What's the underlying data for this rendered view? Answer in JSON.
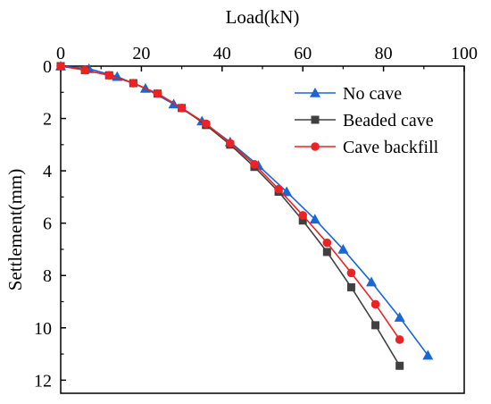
{
  "chart_data": {
    "type": "line",
    "title": "",
    "xlabel": "Load(kN)",
    "ylabel": "Settlement(mm)",
    "x_axis_position": "top",
    "y_axis_inverted": true,
    "xlim": [
      0,
      100
    ],
    "ylim": [
      0,
      12.5
    ],
    "xticks": [
      "0",
      "20",
      "40",
      "60",
      "80",
      "100"
    ],
    "yticks": [
      "0",
      "2",
      "4",
      "6",
      "8",
      "10",
      "12"
    ],
    "grid": false,
    "legend_position": "top-right",
    "series": [
      {
        "name": "No cave",
        "color": "#1a66d6",
        "marker": "triangle",
        "x": [
          0,
          7,
          14,
          21,
          28,
          35,
          42,
          49,
          56,
          63,
          70,
          77,
          84,
          91
        ],
        "y": [
          0,
          0.1,
          0.4,
          0.85,
          1.45,
          2.1,
          2.9,
          3.8,
          4.8,
          5.85,
          7.0,
          8.25,
          9.6,
          11.05
        ]
      },
      {
        "name": "Beaded cave",
        "color": "#404040",
        "marker": "square",
        "x": [
          0,
          6,
          12,
          18,
          24,
          30,
          36,
          42,
          48,
          54,
          60,
          66,
          72,
          78,
          84
        ],
        "y": [
          0,
          0.15,
          0.35,
          0.65,
          1.05,
          1.6,
          2.25,
          3.0,
          3.85,
          4.8,
          5.9,
          7.1,
          8.45,
          9.9,
          11.45
        ]
      },
      {
        "name": "Cave backfill",
        "color": "#ee2222",
        "marker": "circle",
        "x": [
          0,
          6,
          12,
          18,
          24,
          30,
          36,
          42,
          48,
          54,
          60,
          66,
          72,
          78,
          84
        ],
        "y": [
          0,
          0.15,
          0.35,
          0.65,
          1.05,
          1.6,
          2.2,
          2.95,
          3.75,
          4.7,
          5.7,
          6.75,
          7.9,
          9.1,
          10.45
        ]
      }
    ]
  }
}
